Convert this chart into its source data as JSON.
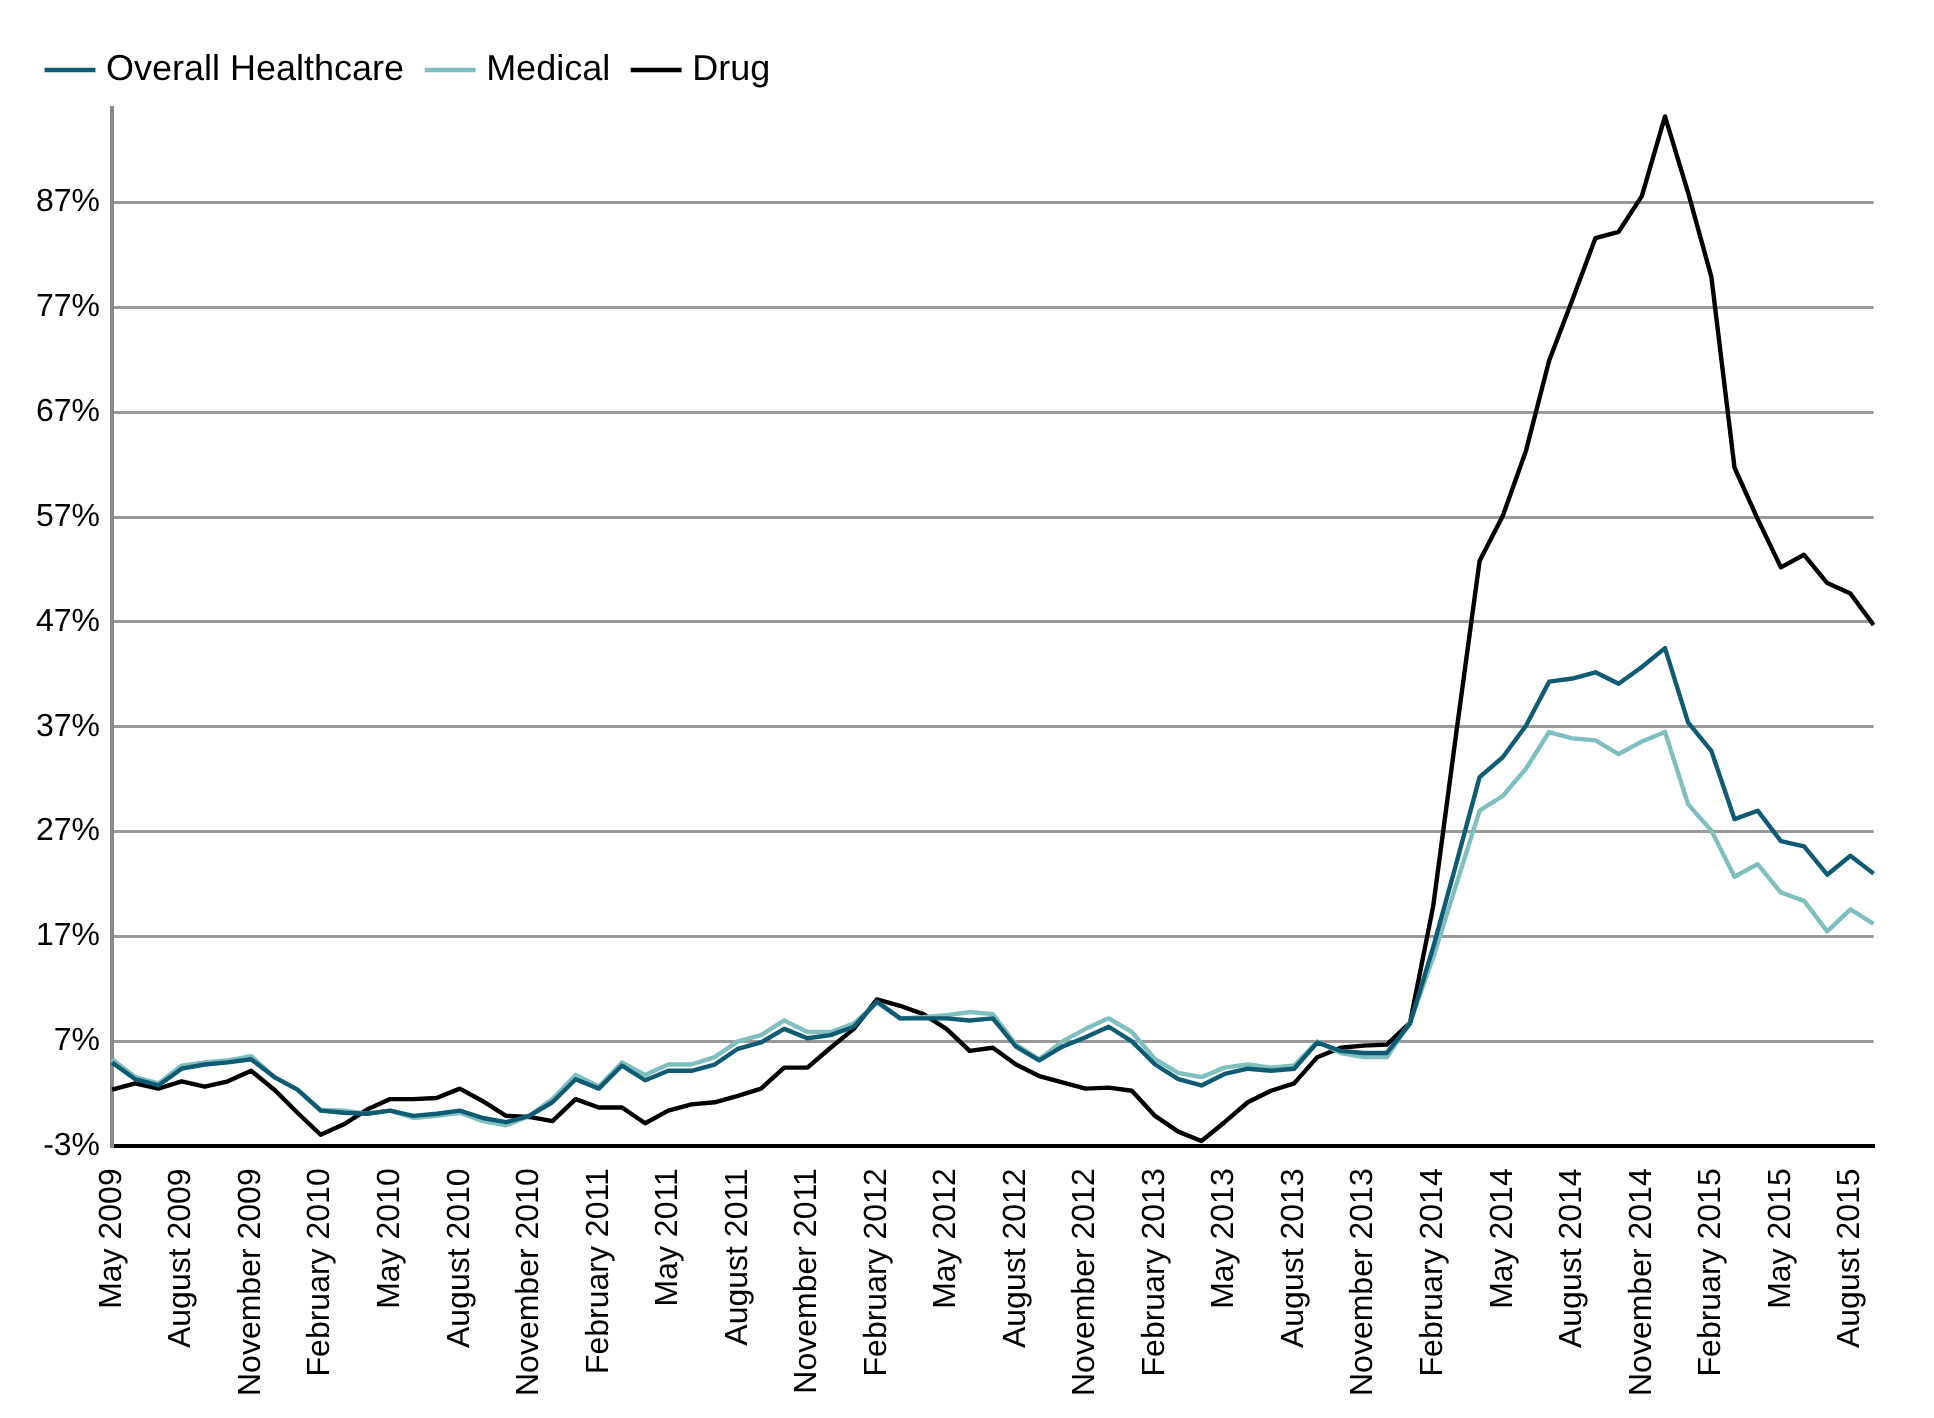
{
  "chart_data": {
    "type": "line",
    "categories": [
      "May 2009",
      null,
      null,
      "August 2009",
      null,
      null,
      "November 2009",
      null,
      null,
      "February 2010",
      null,
      null,
      "May 2010",
      null,
      null,
      "August 2010",
      null,
      null,
      "November 2010",
      null,
      null,
      "February 2011",
      null,
      null,
      "May 2011",
      null,
      null,
      "August 2011",
      null,
      null,
      "November 2011",
      null,
      null,
      "February 2012",
      null,
      null,
      "May 2012",
      null,
      null,
      "August 2012",
      null,
      null,
      "November 2012",
      null,
      null,
      "February 2013",
      null,
      null,
      "May 2013",
      null,
      null,
      "August 2013",
      null,
      null,
      "November 2013",
      null,
      null,
      "February 2014",
      null,
      null,
      "May 2014",
      null,
      null,
      "August 2014",
      null,
      null,
      "November 2014",
      null,
      null,
      "February 2015",
      null,
      null,
      "May 2015",
      null,
      null,
      "August 2015",
      null
    ],
    "series": [
      {
        "name": "Overall Healthcare",
        "color": "#0e5b73",
        "values": [
          5.0,
          3.4,
          2.8,
          4.4,
          4.8,
          5.0,
          5.3,
          3.6,
          2.4,
          0.4,
          0.2,
          0.1,
          0.4,
          -0.1,
          0.1,
          0.4,
          -0.3,
          -0.7,
          -0.1,
          1.2,
          3.4,
          2.5,
          4.7,
          3.3,
          4.2,
          4.2,
          4.8,
          6.3,
          6.9,
          8.2,
          7.3,
          7.6,
          8.4,
          10.8,
          9.2,
          9.2,
          9.2,
          9.0,
          9.2,
          6.5,
          5.2,
          6.5,
          7.4,
          8.4,
          7.0,
          4.8,
          3.4,
          2.8,
          3.9,
          4.4,
          4.2,
          4.4,
          6.9,
          6.1,
          5.9,
          5.9,
          8.7,
          16,
          24,
          32.2,
          34.1,
          37.1,
          41.3,
          41.6,
          42.2,
          41.1,
          42.7,
          44.5,
          37.4,
          34.7,
          28.2,
          29.0,
          26.1,
          25.6,
          22.9,
          24.7,
          23.0
        ]
      },
      {
        "name": "Medical",
        "color": "#7fbfbf",
        "values": [
          5.3,
          3.6,
          3.0,
          4.7,
          5.0,
          5.2,
          5.6,
          3.6,
          2.4,
          0.5,
          0.4,
          0.1,
          0.4,
          -0.3,
          -0.1,
          0.2,
          -0.6,
          -1.0,
          -0.1,
          1.5,
          3.8,
          2.7,
          5.0,
          3.8,
          4.8,
          4.8,
          5.5,
          7.0,
          7.6,
          9.0,
          7.9,
          7.9,
          8.7,
          10.7,
          9.2,
          9.3,
          9.5,
          9.8,
          9.6,
          6.7,
          5.3,
          7.0,
          8.2,
          9.2,
          7.9,
          5.3,
          4.0,
          3.6,
          4.5,
          4.8,
          4.5,
          4.7,
          7.0,
          5.9,
          5.5,
          5.5,
          8.8,
          15,
          22,
          29.0,
          30.4,
          33.0,
          36.5,
          35.9,
          35.7,
          34.4,
          35.6,
          36.5,
          29.6,
          27.1,
          22.7,
          23.9,
          21.2,
          20.4,
          17.5,
          19.6,
          18.2
        ]
      },
      {
        "name": "Drug",
        "color": "#000000",
        "values": [
          2.4,
          3.0,
          2.5,
          3.2,
          2.7,
          3.2,
          4.2,
          2.4,
          0.2,
          -1.9,
          -0.9,
          0.5,
          1.5,
          1.5,
          1.6,
          2.5,
          1.3,
          -0.1,
          -0.2,
          -0.6,
          1.5,
          0.7,
          0.7,
          -0.8,
          0.4,
          1.0,
          1.2,
          1.8,
          2.5,
          4.5,
          4.5,
          6.4,
          8.2,
          11.0,
          10.4,
          9.6,
          8.2,
          6.1,
          6.4,
          4.8,
          3.7,
          3.1,
          2.5,
          2.6,
          2.3,
          -0.1,
          -1.6,
          -2.5,
          -0.7,
          1.2,
          2.3,
          3.0,
          5.5,
          6.4,
          6.6,
          6.7,
          8.8,
          19.9,
          36.5,
          52.8,
          57.1,
          63.3,
          71.9,
          77.7,
          83.6,
          84.2,
          87.6,
          95.2,
          87.9,
          79.9,
          61.7,
          56.8,
          52.2,
          53.4,
          50.7,
          49.7,
          46.7
        ]
      }
    ],
    "ylim": [
      -3,
      96
    ],
    "yticks": [
      {
        "value": -3,
        "label": "-3%"
      },
      {
        "value": 7,
        "label": "7%"
      },
      {
        "value": 17,
        "label": "17%"
      },
      {
        "value": 27,
        "label": "27%"
      },
      {
        "value": 37,
        "label": "37%"
      },
      {
        "value": 47,
        "label": "47%"
      },
      {
        "value": 57,
        "label": "57%"
      },
      {
        "value": 67,
        "label": "67%"
      },
      {
        "value": 77,
        "label": "77%"
      },
      {
        "value": 87,
        "label": "87%"
      }
    ],
    "grid": "y",
    "legend": "top left",
    "marker": "none",
    "line_style": "solid"
  }
}
